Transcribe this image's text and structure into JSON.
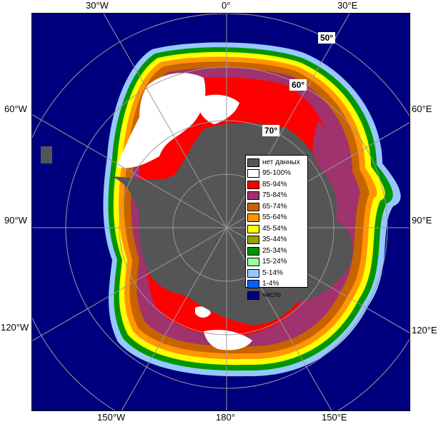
{
  "map": {
    "longitude_labels": {
      "w30": "30°W",
      "zero": "0°",
      "e30": "30°E",
      "w60": "60°W",
      "e60": "60°E",
      "w90": "90°W",
      "e90": "90°E",
      "w120": "120°W",
      "e120": "120°E",
      "w150": "150°W",
      "s180": "180°",
      "e150": "150°E"
    },
    "latitude_labels": {
      "lat50": "50°",
      "lat60": "60°",
      "lat70": "70°"
    },
    "colors": {
      "open_ocean": "#00007f",
      "no_data": "#555555",
      "graticule": "#9a9a9a"
    }
  },
  "legend": {
    "items": [
      {
        "label": "нет данных",
        "color": "#555555"
      },
      {
        "label": "95-100%",
        "color": "#ffffff"
      },
      {
        "label": "85-94%",
        "color": "#ff0000"
      },
      {
        "label": "75-84%",
        "color": "#a0326e"
      },
      {
        "label": "65-74%",
        "color": "#c86400"
      },
      {
        "label": "55-64%",
        "color": "#ff9600"
      },
      {
        "label": "45-54%",
        "color": "#ffff00"
      },
      {
        "label": "35-44%",
        "color": "#96a000"
      },
      {
        "label": "25-34%",
        "color": "#009600"
      },
      {
        "label": "15-24%",
        "color": "#96ff96"
      },
      {
        "label": "5-14%",
        "color": "#96c8ff"
      },
      {
        "label": "1-4%",
        "color": "#0064ff"
      },
      {
        "label": "чисто",
        "color": "#00007f"
      }
    ]
  }
}
